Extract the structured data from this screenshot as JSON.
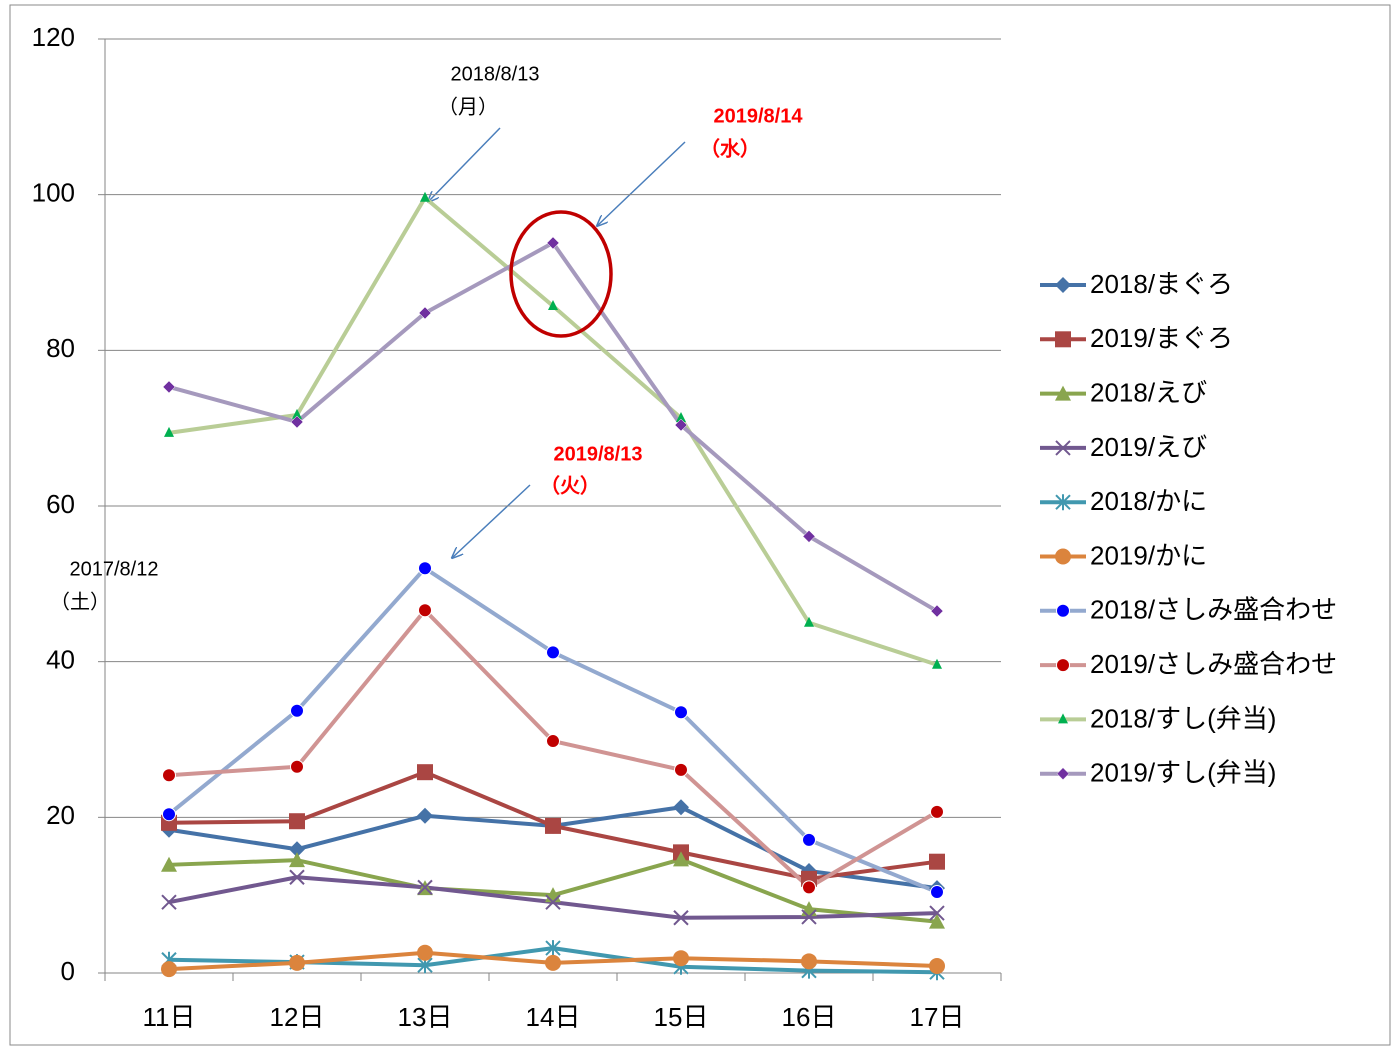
{
  "chart_data": {
    "type": "line",
    "categories": [
      "11日",
      "12日",
      "13日",
      "14日",
      "15日",
      "16日",
      "17日"
    ],
    "ylim": [
      0,
      120
    ],
    "yticks": [
      0,
      20,
      40,
      60,
      80,
      100,
      120
    ],
    "grid": true,
    "legend": "right",
    "series": [
      {
        "name": "2018/まぐろ",
        "color": "#4572a7",
        "marker": "diamond",
        "marker_color": "#4572a7",
        "values": [
          18.4,
          15.9,
          20.2,
          18.9,
          21.3,
          13.1,
          10.9
        ]
      },
      {
        "name": "2019/まぐろ",
        "color": "#aa4643",
        "marker": "square",
        "marker_color": "#aa4643",
        "values": [
          19.3,
          19.5,
          25.8,
          18.9,
          15.5,
          12.1,
          14.3
        ]
      },
      {
        "name": "2018/えび",
        "color": "#89a54e",
        "marker": "triangle",
        "marker_color": "#89a54e",
        "values": [
          13.9,
          14.5,
          10.9,
          10.0,
          14.6,
          8.2,
          6.6
        ]
      },
      {
        "name": "2019/えび",
        "color": "#71588f",
        "marker": "x",
        "marker_color": "#71588f",
        "values": [
          9.1,
          12.3,
          11.0,
          9.1,
          7.1,
          7.2,
          7.7
        ]
      },
      {
        "name": "2018/かに",
        "color": "#4198af",
        "marker": "asterisk",
        "marker_color": "#4198af",
        "values": [
          1.7,
          1.4,
          1.0,
          3.2,
          0.8,
          0.3,
          0.1
        ]
      },
      {
        "name": "2019/かに",
        "color": "#db843d",
        "marker": "circle",
        "marker_color": "#db843d",
        "values": [
          0.5,
          1.3,
          2.6,
          1.3,
          1.9,
          1.5,
          0.9
        ]
      },
      {
        "name": "2018/さしみ盛合わせ",
        "color": "#93a9cf",
        "marker": "dot",
        "marker_color": "#0000ff",
        "values": [
          20.4,
          33.7,
          52.0,
          41.2,
          33.5,
          17.1,
          10.4
        ]
      },
      {
        "name": "2019/さしみ盛合わせ",
        "color": "#d09493",
        "marker": "dot",
        "marker_color": "#c00000",
        "values": [
          25.4,
          26.5,
          46.6,
          29.8,
          26.1,
          11.0,
          20.7
        ]
      },
      {
        "name": "2018/すし(弁当)",
        "color": "#b9cd96",
        "marker": "small-triangle",
        "marker_color": "#00b050",
        "values": [
          69.4,
          71.7,
          99.6,
          85.7,
          71.3,
          45.0,
          39.6
        ]
      },
      {
        "name": "2019/すし(弁当)",
        "color": "#a599bd",
        "marker": "small-diamond",
        "marker_color": "#7030a0",
        "values": [
          75.3,
          70.8,
          84.8,
          93.8,
          70.4,
          56.1,
          46.5
        ]
      }
    ],
    "annotations": [
      {
        "lines": [
          "2018/8/13",
          "（月）"
        ],
        "color": "#000000"
      },
      {
        "lines": [
          "2019/8/14",
          "（水）"
        ],
        "color": "#ff0000"
      },
      {
        "lines": [
          "2019/8/13",
          "（火）"
        ],
        "color": "#ff0000"
      },
      {
        "lines": [
          "2017/8/12",
          "（土）"
        ],
        "color": "#000000"
      }
    ]
  }
}
